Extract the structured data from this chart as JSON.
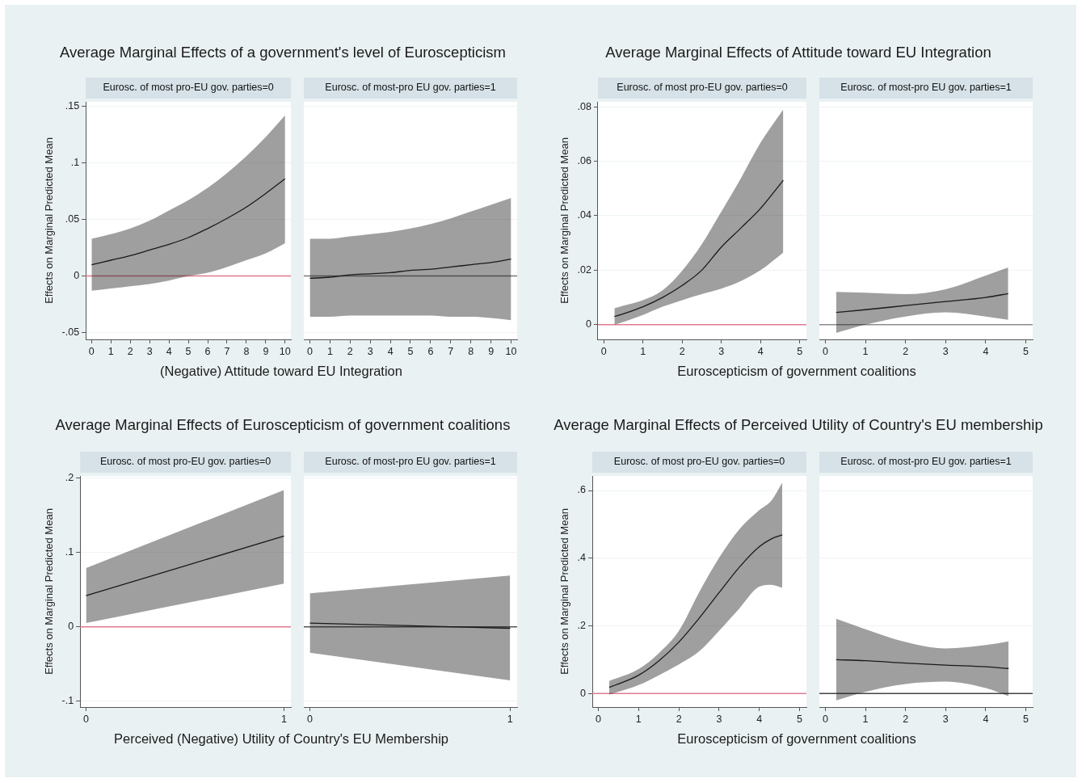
{
  "chart_data": [
    {
      "type": "line",
      "title": "Average Marginal Effects of a government's level of Euroscepticism",
      "subtitle": "Eurosc. of most pro-EU gov. parties=0",
      "xlabel": "(Negative) Attitude toward EU Integration",
      "ylabel": "Effects on Marginal Predicted Mean",
      "x": [
        0,
        1,
        2,
        3,
        4,
        5,
        6,
        7,
        8,
        9,
        10
      ],
      "series": [
        {
          "color": "#1a1a1a",
          "values": [
            0.01,
            0.014,
            0.018,
            0.023,
            0.028,
            0.034,
            0.042,
            0.051,
            0.061,
            0.073,
            0.086
          ],
          "lower": [
            -0.013,
            -0.011,
            -0.009,
            -0.007,
            -0.004,
            0.0,
            0.003,
            0.008,
            0.014,
            0.02,
            0.029
          ],
          "upper": [
            0.033,
            0.037,
            0.042,
            0.049,
            0.058,
            0.067,
            0.078,
            0.091,
            0.106,
            0.123,
            0.142
          ]
        }
      ],
      "xlim": [
        -0.3,
        10.3
      ],
      "xticks": [
        0,
        1,
        2,
        3,
        4,
        5,
        6,
        7,
        8,
        9,
        10
      ],
      "ylim": [
        -0.056,
        0.154
      ],
      "yticks": [
        {
          "value": -0.05,
          "label": "-.05"
        },
        0,
        {
          "value": 0.05,
          "label": ".05"
        },
        {
          "value": 0.1,
          "label": ".1"
        },
        {
          "value": 0.15,
          "label": ".15"
        }
      ],
      "ref_lines": [
        {
          "axis": "y",
          "value": 0,
          "color": "#e07a90"
        }
      ],
      "grid": "y"
    },
    {
      "type": "line",
      "subtitle": "Eurosc. of most-pro EU gov. parties=1",
      "x": [
        0,
        1,
        2,
        3,
        4,
        5,
        6,
        7,
        8,
        9,
        10
      ],
      "series": [
        {
          "color": "#1a1a1a",
          "values": [
            -0.002,
            -0.001,
            0.001,
            0.002,
            0.003,
            0.005,
            0.006,
            0.008,
            0.01,
            0.012,
            0.015
          ],
          "lower": [
            -0.036,
            -0.036,
            -0.035,
            -0.035,
            -0.035,
            -0.035,
            -0.035,
            -0.036,
            -0.036,
            -0.037,
            -0.039
          ],
          "upper": [
            0.033,
            0.033,
            0.035,
            0.037,
            0.039,
            0.042,
            0.046,
            0.051,
            0.057,
            0.063,
            0.069
          ]
        }
      ],
      "xlim": [
        -0.3,
        10.3
      ],
      "xticks": [
        0,
        1,
        2,
        3,
        4,
        5,
        6,
        7,
        8,
        9,
        10
      ],
      "ylim": [
        -0.056,
        0.154
      ],
      "yticks": [
        -0.05,
        0,
        0.05,
        0.1,
        0.15
      ],
      "ref_lines": [
        {
          "axis": "y",
          "value": 0,
          "color": "#777777"
        }
      ],
      "grid": "y",
      "tick_labels": "x"
    },
    {
      "type": "line",
      "title": "Average Marginal Effects of Attitude toward EU Integration",
      "subtitle": "Eurosc. of most pro-EU gov. parties=0",
      "xlabel": "Euroscepticism of government coalitions",
      "ylabel": "Effects on Marginal Predicted Mean",
      "x": [
        0.27,
        0.5,
        1,
        1.5,
        2,
        2.5,
        3,
        3.5,
        4,
        4.58
      ],
      "series": [
        {
          "color": "#1a1a1a",
          "values": [
            0.003,
            0.004,
            0.0066,
            0.01,
            0.0144,
            0.02,
            0.0285,
            0.0355,
            0.0427,
            0.053
          ],
          "lower": [
            0.0,
            0.001,
            0.0036,
            0.0066,
            0.009,
            0.0112,
            0.0132,
            0.016,
            0.02,
            0.0265
          ],
          "upper": [
            0.006,
            0.007,
            0.009,
            0.0126,
            0.0198,
            0.0295,
            0.0415,
            0.0538,
            0.0668,
            0.079
          ]
        }
      ],
      "xlim": [
        -0.15,
        5.17
      ],
      "xticks": [
        0,
        1,
        2,
        3,
        4,
        5
      ],
      "ylim": [
        -0.0054,
        0.0818
      ],
      "yticks": [
        0,
        {
          "value": 0.02,
          "label": ".02"
        },
        {
          "value": 0.04,
          "label": ".04"
        },
        {
          "value": 0.06,
          "label": ".06"
        },
        {
          "value": 0.08,
          "label": ".08"
        }
      ],
      "ref_lines": [
        {
          "axis": "y",
          "value": 0,
          "color": "#e07a90"
        }
      ],
      "grid": "y"
    },
    {
      "type": "line",
      "subtitle": "Eurosc. of most-pro EU gov. parties=1",
      "x": [
        0.27,
        1,
        2,
        3,
        4,
        4.56
      ],
      "series": [
        {
          "color": "#1a1a1a",
          "values": [
            0.0045,
            0.0055,
            0.007,
            0.0085,
            0.01,
            0.0114
          ],
          "lower": [
            -0.003,
            0.0,
            0.003,
            0.0045,
            0.003,
            0.0018
          ],
          "upper": [
            0.012,
            0.0117,
            0.0112,
            0.013,
            0.018,
            0.021
          ]
        }
      ],
      "xlim": [
        -0.15,
        5.17
      ],
      "xticks": [
        0,
        1,
        2,
        3,
        4,
        5
      ],
      "ylim": [
        -0.0054,
        0.0818
      ],
      "yticks": [
        0,
        0.02,
        0.04,
        0.06,
        0.08
      ],
      "ref_lines": [
        {
          "axis": "y",
          "value": 0,
          "color": "#8c8c8c"
        }
      ],
      "grid": "y",
      "tick_labels": "x"
    },
    {
      "type": "line",
      "title": "Average Marginal Effects of Euroscepticism of government coalitions",
      "subtitle": "Eurosc. of most pro-EU gov. parties=0",
      "xlabel": "Perceived (Negative) Utility of Country's EU Membership",
      "ylabel": "Effects on Marginal Predicted Mean",
      "x": [
        0,
        1
      ],
      "series": [
        {
          "color": "#1a1a1a",
          "values": [
            0.042,
            0.122
          ],
          "lower": [
            0.005,
            0.058
          ],
          "upper": [
            0.079,
            0.184
          ]
        }
      ],
      "xlim": [
        -0.03,
        1.035
      ],
      "xticks": [
        0,
        1
      ],
      "ylim": [
        -0.108,
        0.203
      ],
      "yticks": [
        {
          "value": -0.1,
          "label": "-.1"
        },
        0,
        {
          "value": 0.1,
          "label": ".1"
        },
        {
          "value": 0.2,
          "label": ".2"
        }
      ],
      "ref_lines": [
        {
          "axis": "y",
          "value": 0,
          "color": "#e07a90"
        }
      ],
      "grid": "y"
    },
    {
      "type": "line",
      "subtitle": "Eurosc. of most-pro EU gov. parties=1",
      "x": [
        0,
        1
      ],
      "series": [
        {
          "color": "#1a1a1a",
          "values": [
            0.005,
            -0.002
          ],
          "lower": [
            -0.035,
            -0.072
          ],
          "upper": [
            0.045,
            0.069
          ]
        }
      ],
      "xlim": [
        -0.03,
        1.035
      ],
      "xticks": [
        0,
        1
      ],
      "ylim": [
        -0.108,
        0.203
      ],
      "yticks": [
        -0.1,
        0,
        0.1,
        0.2
      ],
      "ref_lines": [
        {
          "axis": "y",
          "value": 0,
          "color": "#555555"
        }
      ],
      "grid": "y",
      "tick_labels": "x"
    },
    {
      "type": "line",
      "title": "Average Marginal Effects of Perceived Utility of Country's EU membership",
      "subtitle": "Eurosc. of most pro-EU gov. parties=0",
      "xlabel": "Euroscepticism of government coalitions",
      "ylabel": "Effects on Marginal Predicted Mean",
      "x": [
        0.27,
        1,
        1.5,
        2,
        2.5,
        3,
        3.5,
        4,
        4.3,
        4.57
      ],
      "series": [
        {
          "color": "#1a1a1a",
          "values": [
            0.018,
            0.054,
            0.096,
            0.152,
            0.222,
            0.298,
            0.373,
            0.434,
            0.457,
            0.469
          ],
          "lower": [
            -0.003,
            0.025,
            0.054,
            0.086,
            0.124,
            0.185,
            0.251,
            0.316,
            0.321,
            0.312
          ],
          "upper": [
            0.037,
            0.072,
            0.119,
            0.185,
            0.298,
            0.401,
            0.485,
            0.542,
            0.57,
            0.623
          ]
        }
      ],
      "xlim": [
        -0.15,
        5.17
      ],
      "xticks": [
        0,
        1,
        2,
        3,
        4,
        5
      ],
      "ylim": [
        -0.04,
        0.643
      ],
      "yticks": [
        0,
        {
          "value": 0.2,
          "label": ".2"
        },
        {
          "value": 0.4,
          "label": ".4"
        },
        {
          "value": 0.6,
          "label": ".6"
        }
      ],
      "ref_lines": [
        {
          "axis": "y",
          "value": 0,
          "color": "#e07a90"
        }
      ],
      "grid": "y"
    },
    {
      "type": "line",
      "subtitle": "Eurosc. of most-pro EU gov. parties=1",
      "x": [
        0.27,
        1,
        2,
        3,
        4,
        4.57
      ],
      "series": [
        {
          "color": "#1a1a1a",
          "values": [
            0.1,
            0.097,
            0.09,
            0.084,
            0.079,
            0.074
          ],
          "lower": [
            -0.02,
            0.005,
            0.028,
            0.035,
            0.016,
            -0.008
          ],
          "upper": [
            0.221,
            0.19,
            0.152,
            0.133,
            0.143,
            0.154
          ]
        }
      ],
      "xlim": [
        -0.15,
        5.17
      ],
      "xticks": [
        0,
        1,
        2,
        3,
        4,
        5
      ],
      "ylim": [
        -0.04,
        0.643
      ],
      "yticks": [
        0,
        0.2,
        0.4,
        0.6
      ],
      "ref_lines": [
        {
          "axis": "y",
          "value": 0,
          "color": "#444444"
        }
      ],
      "grid": "y",
      "tick_labels": "x"
    }
  ]
}
